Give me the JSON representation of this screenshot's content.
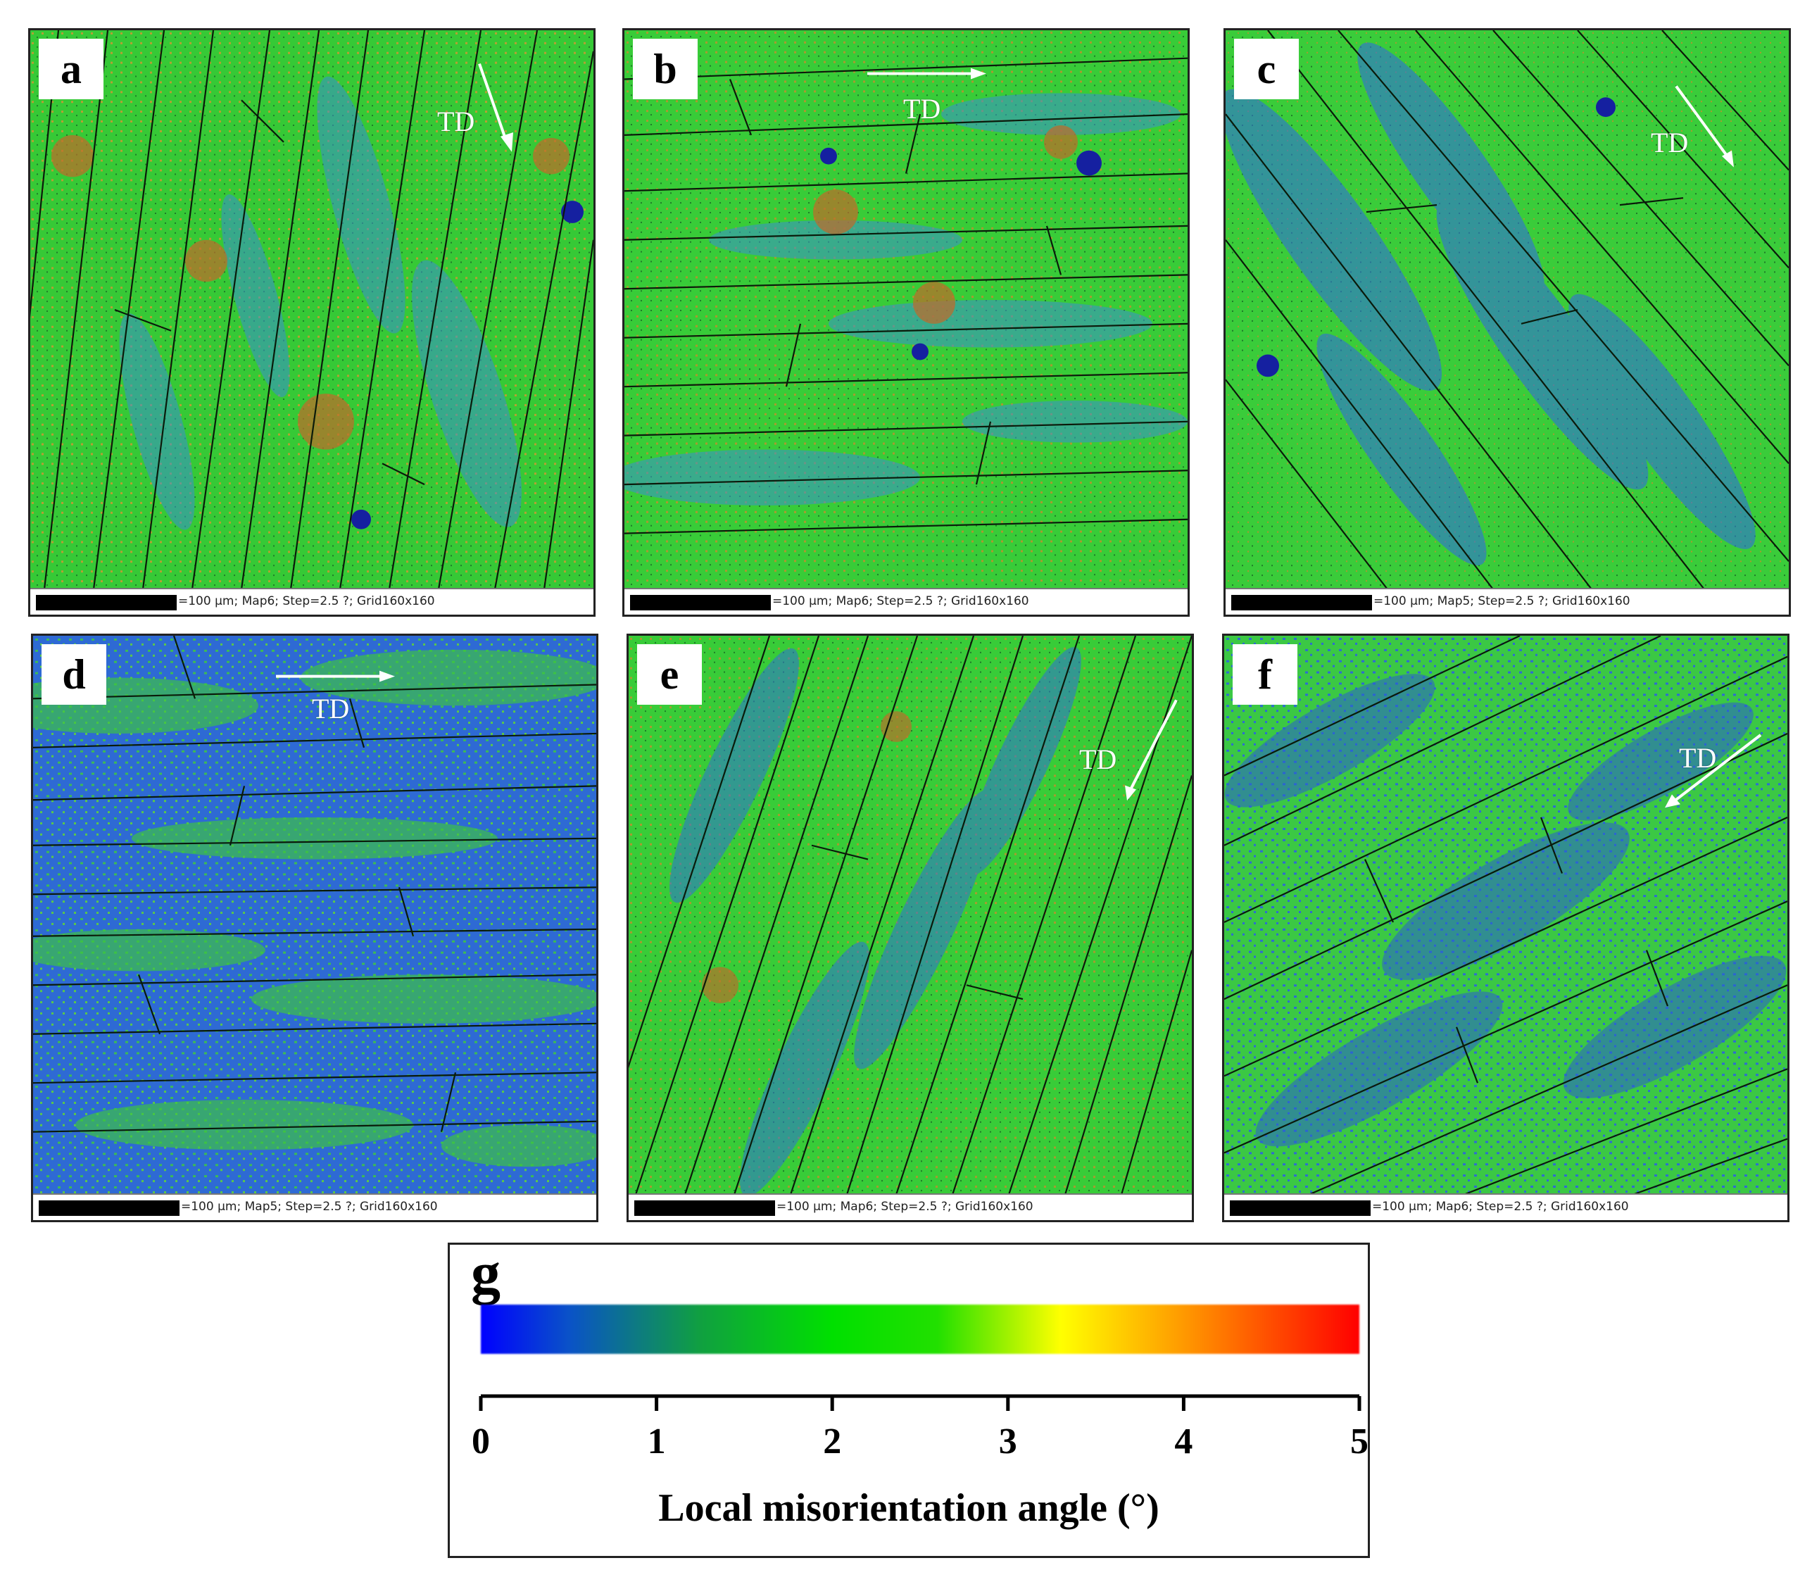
{
  "colors": {
    "low": "#1f4fd6",
    "mid": "#2fd02f",
    "high": "#ff2a00",
    "boundary": "#0a1a0a"
  },
  "panels": [
    {
      "letter": "a",
      "td": "TD",
      "info": "=100 μm; Map6; Step=2.5 ?; Grid160x160"
    },
    {
      "letter": "b",
      "td": "TD",
      "info": "=100 μm; Map6; Step=2.5 ?; Grid160x160"
    },
    {
      "letter": "c",
      "td": "TD",
      "info": "=100 μm; Map5; Step=2.5 ?; Grid160x160"
    },
    {
      "letter": "d",
      "td": "TD",
      "info": "=100 μm; Map5; Step=2.5 ?; Grid160x160"
    },
    {
      "letter": "e",
      "td": "TD",
      "info": "=100 μm; Map6; Step=2.5 ?; Grid160x160"
    },
    {
      "letter": "f",
      "td": "TD",
      "info": "=100 μm; Map6; Step=2.5 ?; Grid160x160"
    }
  ],
  "legend": {
    "letter": "g",
    "ticks": [
      "0",
      "1",
      "2",
      "3",
      "4",
      "5"
    ],
    "title": "Local misorientation angle (°)"
  }
}
